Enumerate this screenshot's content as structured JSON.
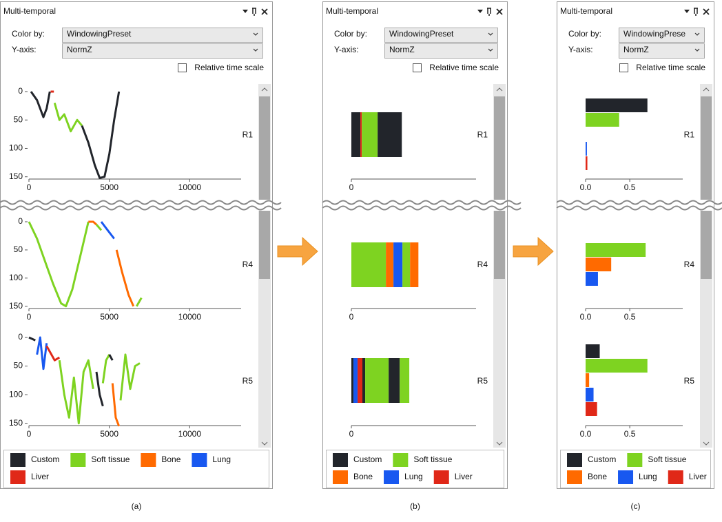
{
  "panels": [
    {
      "title": "Multi-temporal",
      "color_by_label": "Color by:",
      "color_by": "WindowingPreset",
      "y_axis_label": "Y-axis:",
      "y_axis": "NormZ",
      "relative_time_scale": "Relative time scale",
      "relative_time_scale_checked": false,
      "charts": [
        {
          "type": "line",
          "label": "R1",
          "xlim": [
            0,
            13200
          ],
          "xticks": [
            0,
            5000,
            10000
          ],
          "ylim": [
            0,
            154
          ],
          "yticks": [
            0,
            50,
            100,
            150
          ],
          "y_inverted": true,
          "segments": [
            {
              "color": "#22252b",
              "x": [
                130,
                500,
                900,
                1100,
                1300
              ],
              "y": [
                0,
                15,
                45,
                30,
                0
              ]
            },
            {
              "color": "#e02818",
              "x": [
                1350,
                1550
              ],
              "y": [
                0,
                0
              ]
            },
            {
              "color": "#7ed321",
              "x": [
                1600,
                1900,
                2200,
                2600,
                3000,
                3300
              ],
              "y": [
                20,
                50,
                40,
                70,
                50,
                60
              ]
            },
            {
              "color": "#22252b",
              "x": [
                3300,
                3700,
                4100,
                4400,
                4700,
                5000,
                5300,
                5600
              ],
              "y": [
                60,
                90,
                130,
                152,
                150,
                110,
                50,
                0
              ]
            }
          ]
        },
        {
          "type": "line",
          "label": "R4",
          "xlim": [
            0,
            13200
          ],
          "xticks": [
            0,
            5000,
            10000
          ],
          "ylim": [
            0,
            154
          ],
          "yticks": [
            0,
            50,
            100,
            150
          ],
          "y_inverted": true,
          "segments": [
            {
              "color": "#7ed321",
              "x": [
                0,
                500,
                1000,
                1500,
                2000,
                2300,
                2700,
                3200,
                3700
              ],
              "y": [
                0,
                30,
                70,
                110,
                145,
                150,
                120,
                60,
                0
              ]
            },
            {
              "color": "#ff6a00",
              "x": [
                3700,
                4000,
                4200
              ],
              "y": [
                0,
                0,
                5
              ]
            },
            {
              "color": "#7ed321",
              "x": [
                4200,
                4500
              ],
              "y": [
                5,
                15
              ]
            },
            {
              "color": "#1858f0",
              "x": [
                4500,
                4900,
                5300
              ],
              "y": [
                0,
                15,
                30
              ]
            },
            {
              "color": "#ff6a00",
              "x": [
                5450,
                5800,
                6200,
                6500
              ],
              "y": [
                50,
                90,
                130,
                150
              ]
            },
            {
              "color": "#7ed321",
              "x": [
                6700,
                7000
              ],
              "y": [
                150,
                135
              ]
            }
          ]
        },
        {
          "type": "line",
          "label": "R5",
          "xlim": [
            0,
            13200
          ],
          "xticks": [
            0,
            5000,
            10000
          ],
          "ylim": [
            0,
            154
          ],
          "yticks": [
            0,
            50,
            100,
            150
          ],
          "y_inverted": true,
          "segments": [
            {
              "color": "#22252b",
              "x": [
                0,
                400
              ],
              "y": [
                0,
                5
              ]
            },
            {
              "color": "#1858f0",
              "x": [
                500,
                700,
                900,
                1100
              ],
              "y": [
                30,
                0,
                55,
                10
              ]
            },
            {
              "color": "#e02818",
              "x": [
                1100,
                1400,
                1600,
                1900
              ],
              "y": [
                15,
                30,
                40,
                35
              ]
            },
            {
              "color": "#7ed321",
              "x": [
                1900,
                2200,
                2500,
                2800,
                3100,
                3400,
                3700,
                4000
              ],
              "y": [
                40,
                100,
                140,
                70,
                150,
                60,
                40,
                90
              ]
            },
            {
              "color": "#22252b",
              "x": [
                4200,
                4400,
                4600
              ],
              "y": [
                60,
                100,
                120
              ]
            },
            {
              "color": "#7ed321",
              "x": [
                4600,
                4800,
                5000
              ],
              "y": [
                80,
                40,
                30
              ]
            },
            {
              "color": "#22252b",
              "x": [
                5000,
                5200
              ],
              "y": [
                30,
                40
              ]
            },
            {
              "color": "#ff6a00",
              "x": [
                5200,
                5400,
                5600
              ],
              "y": [
                80,
                140,
                155
              ]
            },
            {
              "color": "#7ed321",
              "x": [
                5700,
                6000,
                6300,
                6600,
                6900
              ],
              "y": [
                110,
                30,
                90,
                50,
                45
              ]
            }
          ]
        }
      ],
      "legend": [
        {
          "name": "Custom",
          "color": "#22252b"
        },
        {
          "name": "Soft tissue",
          "color": "#7ed321"
        },
        {
          "name": "Bone",
          "color": "#ff6a00"
        },
        {
          "name": "Lung",
          "color": "#1858f0"
        },
        {
          "name": "Liver",
          "color": "#e02818"
        }
      ],
      "caption": "(a)"
    },
    {
      "title": "Multi-temporal",
      "color_by_label": "Color by:",
      "color_by": "WindowingPreset",
      "y_axis_label": "Y-axis:",
      "y_axis": "NormZ",
      "relative_time_scale": "Relative time scale",
      "relative_time_scale_checked": false,
      "charts": [
        {
          "type": "stacked_bar",
          "label": "R1",
          "xlim": [
            0,
            13000
          ],
          "xticks": [
            0
          ],
          "values": [
            940,
            150,
            1650,
            2520
          ],
          "colors": [
            "#22252b",
            "#e02818",
            "#7ed321",
            "#22252b"
          ]
        },
        {
          "type": "stacked_bar",
          "label": "R4",
          "xlim": [
            0,
            13000
          ],
          "xticks": [
            0
          ],
          "values": [
            3600,
            790,
            940,
            790,
            870
          ],
          "colors": [
            "#7ed321",
            "#ff6a00",
            "#1858f0",
            "#7ed321",
            "#ff6a00"
          ]
        },
        {
          "type": "stacked_bar",
          "label": "R5",
          "xlim": [
            0,
            13000
          ],
          "xticks": [
            0
          ],
          "values": [
            220,
            430,
            500,
            290,
            2450,
            1150,
            1000
          ],
          "colors": [
            "#22252b",
            "#1858f0",
            "#e02818",
            "#22252b",
            "#7ed321",
            "#22252b",
            "#7ed321"
          ]
        }
      ],
      "legend": [
        {
          "name": "Custom",
          "color": "#22252b"
        },
        {
          "name": "Soft tissue",
          "color": "#7ed321"
        },
        {
          "name": "Bone",
          "color": "#ff6a00"
        },
        {
          "name": "Lung",
          "color": "#1858f0"
        },
        {
          "name": "Liver",
          "color": "#e02818"
        }
      ],
      "caption": "(b)"
    },
    {
      "title": "Multi-temporal",
      "color_by_label": "Color by:",
      "color_by": "WindowingPrese",
      "y_axis_label": "Y-axis:",
      "y_axis": "NormZ",
      "relative_time_scale": "Relative time scale",
      "relative_time_scale_checked": false,
      "charts": [
        {
          "type": "bar",
          "label": "R1",
          "xlim": [
            0,
            1.1
          ],
          "xticks": [
            {
              "value": 0,
              "label": "0.0"
            },
            0.5
          ],
          "values": [
            0.7,
            0.38,
            0,
            0.015,
            0.02
          ]
        },
        {
          "type": "bar",
          "label": "R4",
          "xlim": [
            0,
            1.1
          ],
          "xticks": [
            {
              "value": 0,
              "label": "0.0"
            },
            0.5
          ],
          "values": [
            0,
            0.68,
            0.29,
            0.14,
            0
          ]
        },
        {
          "type": "bar",
          "label": "R5",
          "xlim": [
            0,
            1.1
          ],
          "xticks": [
            {
              "value": 0,
              "label": "0.0"
            },
            0.5
          ],
          "values": [
            0.16,
            0.7,
            0.04,
            0.09,
            0.13
          ]
        }
      ],
      "legend": [
        {
          "name": "Custom",
          "color": "#22252b"
        },
        {
          "name": "Soft tissue",
          "color": "#7ed321"
        },
        {
          "name": "Bone",
          "color": "#ff6a00"
        },
        {
          "name": "Lung",
          "color": "#1858f0"
        },
        {
          "name": "Liver",
          "color": "#e02818"
        }
      ],
      "caption": "(c)"
    }
  ]
}
